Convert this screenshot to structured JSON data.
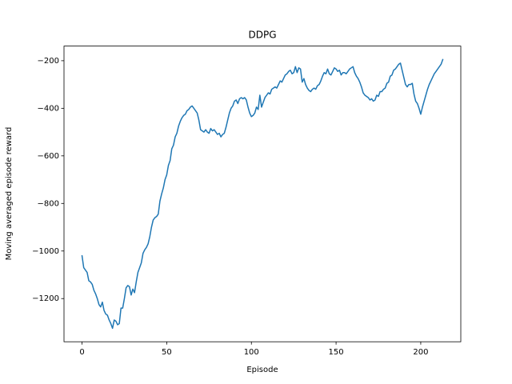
{
  "chart_data": {
    "type": "line",
    "title": "DDPG",
    "xlabel": "Episode",
    "ylabel": "Moving averaged episode reward",
    "color": "#1f77b4",
    "xlim": [
      -10.65,
      223.65
    ],
    "ylim": [
      -1381.5,
      -138.5
    ],
    "xticks": [
      0,
      50,
      100,
      150,
      200
    ],
    "yticks": [
      {
        "value": -1200,
        "label": "−1200"
      },
      {
        "value": -1000,
        "label": "−1000"
      },
      {
        "value": -800,
        "label": "−800"
      },
      {
        "value": -600,
        "label": "−600"
      },
      {
        "value": -400,
        "label": "−400"
      },
      {
        "value": -200,
        "label": "−200"
      }
    ],
    "x": [
      0,
      1,
      2,
      3,
      4,
      5,
      6,
      7,
      8,
      9,
      10,
      11,
      12,
      13,
      14,
      15,
      16,
      17,
      18,
      19,
      20,
      21,
      22,
      23,
      24,
      25,
      26,
      27,
      28,
      29,
      30,
      31,
      32,
      33,
      34,
      35,
      36,
      37,
      38,
      39,
      40,
      41,
      42,
      43,
      44,
      45,
      46,
      47,
      48,
      49,
      50,
      51,
      52,
      53,
      54,
      55,
      56,
      57,
      58,
      59,
      60,
      61,
      62,
      63,
      64,
      65,
      66,
      67,
      68,
      69,
      70,
      71,
      72,
      73,
      74,
      75,
      76,
      77,
      78,
      79,
      80,
      81,
      82,
      83,
      84,
      85,
      86,
      87,
      88,
      89,
      90,
      91,
      92,
      93,
      94,
      95,
      96,
      97,
      98,
      99,
      100,
      101,
      102,
      103,
      104,
      105,
      106,
      107,
      108,
      109,
      110,
      111,
      112,
      113,
      114,
      115,
      116,
      117,
      118,
      119,
      120,
      121,
      122,
      123,
      124,
      125,
      126,
      127,
      128,
      129,
      130,
      131,
      132,
      133,
      134,
      135,
      136,
      137,
      138,
      139,
      140,
      141,
      142,
      143,
      144,
      145,
      146,
      147,
      148,
      149,
      150,
      151,
      152,
      153,
      154,
      155,
      156,
      157,
      158,
      159,
      160,
      161,
      162,
      163,
      164,
      165,
      166,
      167,
      168,
      169,
      170,
      171,
      172,
      173,
      174,
      175,
      176,
      177,
      178,
      179,
      180,
      181,
      182,
      183,
      184,
      185,
      186,
      187,
      188,
      189,
      190,
      191,
      192,
      193,
      194,
      195,
      196,
      197,
      198,
      199,
      200,
      201,
      202,
      203,
      204,
      205,
      206,
      207,
      208,
      209,
      210,
      211,
      212,
      213
    ],
    "values": [
      -1020,
      -1070,
      -1080,
      -1090,
      -1125,
      -1130,
      -1140,
      -1165,
      -1180,
      -1200,
      -1225,
      -1235,
      -1215,
      -1250,
      -1265,
      -1270,
      -1290,
      -1305,
      -1325,
      -1290,
      -1295,
      -1310,
      -1305,
      -1240,
      -1240,
      -1200,
      -1155,
      -1145,
      -1150,
      -1185,
      -1160,
      -1175,
      -1130,
      -1090,
      -1070,
      -1050,
      -1010,
      -995,
      -985,
      -970,
      -940,
      -900,
      -870,
      -860,
      -855,
      -845,
      -790,
      -760,
      -735,
      -700,
      -680,
      -640,
      -620,
      -570,
      -555,
      -520,
      -505,
      -475,
      -455,
      -440,
      -430,
      -425,
      -410,
      -405,
      -395,
      -390,
      -400,
      -410,
      -420,
      -450,
      -490,
      -495,
      -500,
      -490,
      -500,
      -505,
      -485,
      -495,
      -490,
      -500,
      -510,
      -505,
      -520,
      -510,
      -505,
      -480,
      -450,
      -420,
      -400,
      -390,
      -370,
      -365,
      -380,
      -360,
      -355,
      -360,
      -355,
      -365,
      -395,
      -420,
      -435,
      -430,
      -420,
      -395,
      -405,
      -345,
      -395,
      -375,
      -355,
      -345,
      -335,
      -340,
      -320,
      -315,
      -310,
      -315,
      -300,
      -285,
      -290,
      -275,
      -260,
      -255,
      -245,
      -240,
      -255,
      -250,
      -225,
      -250,
      -230,
      -235,
      -290,
      -275,
      -300,
      -315,
      -325,
      -330,
      -320,
      -315,
      -320,
      -305,
      -300,
      -285,
      -265,
      -250,
      -255,
      -235,
      -255,
      -260,
      -245,
      -230,
      -235,
      -245,
      -240,
      -260,
      -250,
      -250,
      -255,
      -245,
      -235,
      -230,
      -225,
      -250,
      -265,
      -275,
      -290,
      -310,
      -335,
      -345,
      -350,
      -355,
      -365,
      -360,
      -370,
      -365,
      -345,
      -350,
      -330,
      -330,
      -320,
      -315,
      -295,
      -290,
      -265,
      -260,
      -240,
      -235,
      -225,
      -215,
      -210,
      -240,
      -270,
      -300,
      -310,
      -300,
      -300,
      -295,
      -340,
      -370,
      -380,
      -400,
      -425,
      -395,
      -370,
      -345,
      -320,
      -300,
      -285,
      -270,
      -255,
      -245,
      -235,
      -225,
      -215,
      -195
    ]
  }
}
